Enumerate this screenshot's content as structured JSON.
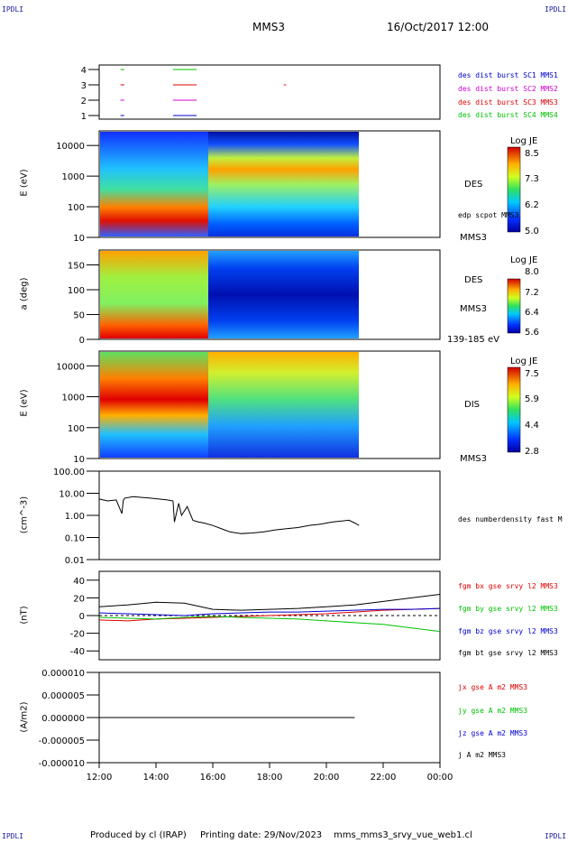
{
  "header": {
    "corner_left": "IPDLI",
    "corner_right": "IPDLI",
    "corner_bottom_left": "IPDLI",
    "corner_bottom_right": "IPDLI",
    "spacecraft": "MMS3",
    "datetime": "16/Oct/2017 12:00"
  },
  "footer": {
    "produced_by": "Produced by cl (IRAP)",
    "printing_date": "Printing date: 29/Nov/2023",
    "script_name": "mms_mms3_srvy_vue_web1.cl"
  },
  "colors": {
    "black": "#000000",
    "red": "#e00000",
    "green": "#00c000",
    "blue": "#0000d0",
    "magenta": "#d000d0"
  },
  "chart_data": [
    {
      "type": "scatter",
      "panel": "burst",
      "yticks": [
        "1",
        "2",
        "3",
        "4"
      ],
      "legend": [
        {
          "label": "des dist burst SC1 MMS1",
          "color": "#0000d0"
        },
        {
          "label": "des dist burst SC2 MMS2",
          "color": "#d000d0"
        },
        {
          "label": "des dist burst SC3 MMS3",
          "color": "#e00000"
        },
        {
          "label": "des dist burst SC4 MMS4",
          "color": "#00c000"
        }
      ],
      "series": [
        {
          "name": "des dist burst SC1 MMS1",
          "y": 1,
          "segments": [
            [
              12.75,
              12.85
            ],
            [
              14.6,
              15.4
            ]
          ]
        },
        {
          "name": "des dist burst SC2 MMS2",
          "y": 2,
          "segments": [
            [
              12.75,
              12.85
            ],
            [
              14.6,
              15.4
            ]
          ]
        },
        {
          "name": "des dist burst SC3 MMS3",
          "y": 3,
          "segments": [
            [
              12.75,
              12.85
            ],
            [
              14.6,
              15.4
            ],
            [
              18.5,
              18.55
            ]
          ]
        },
        {
          "name": "des dist burst SC4 MMS4",
          "y": 4,
          "segments": [
            [
              12.75,
              12.85
            ],
            [
              14.6,
              15.4
            ]
          ]
        }
      ]
    },
    {
      "type": "heatmap",
      "panel": "des-energy",
      "ylabel": "E (eV)",
      "yscale": "log",
      "ylim": [
        10,
        30000
      ],
      "yticks": [
        "10",
        "100",
        "1000",
        "10000"
      ],
      "right_labels": [
        "DES",
        "edp scpot MMS3",
        "MMS3"
      ],
      "colorbar": {
        "title": "Log JE",
        "ticks": [
          "8.5",
          "7.3",
          "6.2",
          "5.0"
        ]
      },
      "data_end_hour": 21.15
    },
    {
      "type": "heatmap",
      "panel": "des-pitch",
      "ylabel": "a (deg)",
      "ylim": [
        0,
        180
      ],
      "yticks": [
        "0",
        "50",
        "100",
        "150"
      ],
      "right_labels": [
        "DES",
        "MMS3",
        "139-185 eV"
      ],
      "colorbar": {
        "title": "Log JE",
        "ticks": [
          "8.0",
          "7.2",
          "6.4",
          "5.6"
        ]
      },
      "data_end_hour": 21.15
    },
    {
      "type": "heatmap",
      "panel": "dis-energy",
      "ylabel": "E (eV)",
      "yscale": "log",
      "ylim": [
        10,
        30000
      ],
      "yticks": [
        "10",
        "100",
        "1000",
        "10000"
      ],
      "right_labels": [
        "DIS",
        "MMS3"
      ],
      "colorbar": {
        "title": "Log JE",
        "ticks": [
          "7.5",
          "5.9",
          "4.4",
          "2.8"
        ]
      },
      "data_end_hour": 21.15
    },
    {
      "type": "line",
      "panel": "density",
      "ylabel": "(cm^-3)",
      "yscale": "log",
      "ylim": [
        0.01,
        100
      ],
      "yticks": [
        "0.01",
        "0.10",
        "1.00",
        "10.00",
        "100.00"
      ],
      "series": [
        {
          "name": "des numberdensity fast M",
          "color": "#000000",
          "x": [
            12.0,
            12.3,
            12.6,
            12.8,
            12.85,
            12.9,
            13.2,
            13.5,
            13.8,
            14.1,
            14.4,
            14.6,
            14.65,
            14.8,
            14.9,
            15.1,
            15.3,
            15.5,
            15.7,
            16.0,
            16.3,
            16.6,
            17.0,
            17.4,
            17.8,
            18.2,
            18.6,
            19.0,
            19.4,
            19.8,
            20.2,
            20.5,
            20.8,
            21.0,
            21.15
          ],
          "y": [
            5.5,
            4.5,
            5.0,
            1.2,
            4.8,
            6.0,
            7.0,
            6.5,
            6.0,
            5.5,
            5.0,
            4.5,
            0.5,
            3.5,
            1.0,
            2.5,
            0.6,
            0.5,
            0.45,
            0.35,
            0.25,
            0.18,
            0.15,
            0.16,
            0.18,
            0.22,
            0.25,
            0.28,
            0.35,
            0.4,
            0.5,
            0.55,
            0.6,
            0.45,
            0.35
          ]
        }
      ]
    },
    {
      "type": "line",
      "panel": "magnetic-field",
      "ylabel": "(nT)",
      "ylim": [
        -50,
        50
      ],
      "yticks": [
        "-40",
        "-20",
        "0",
        "20",
        "40"
      ],
      "series": [
        {
          "name": "fgm bx gse srvy l2 MMS3",
          "color": "#e00000",
          "x": [
            12.0,
            13.0,
            14.0,
            15.0,
            16.0,
            17.0,
            18.0,
            19.0,
            20.0,
            21.0,
            22.0,
            23.0,
            24.0
          ],
          "y": [
            -5,
            -6,
            -4,
            -3,
            -2,
            -1,
            0,
            1,
            2,
            4,
            6,
            7,
            8
          ]
        },
        {
          "name": "fgm by gse srvy l2 MMS3",
          "color": "#00c000",
          "x": [
            12.0,
            13.0,
            14.0,
            15.0,
            16.0,
            17.0,
            18.0,
            19.0,
            20.0,
            21.0,
            22.0,
            23.0,
            24.0
          ],
          "y": [
            -2,
            -3,
            -4,
            -2,
            -1,
            -2,
            -3,
            -4,
            -6,
            -8,
            -10,
            -14,
            -18
          ]
        },
        {
          "name": "fgm bz gse srvy l2 MMS3",
          "color": "#0000d0",
          "x": [
            12.0,
            13.0,
            14.0,
            15.0,
            16.0,
            17.0,
            18.0,
            19.0,
            20.0,
            21.0,
            22.0,
            23.0,
            24.0
          ],
          "y": [
            3,
            2,
            1,
            0,
            2,
            3,
            4,
            4,
            5,
            6,
            7,
            7,
            8
          ]
        },
        {
          "name": "fgm bt gse srvy l2 MMS3",
          "color": "#000000",
          "x": [
            12.0,
            13.0,
            14.0,
            15.0,
            16.0,
            17.0,
            18.0,
            19.0,
            20.0,
            21.0,
            22.0,
            23.0,
            24.0
          ],
          "y": [
            10,
            12,
            15,
            14,
            7,
            6,
            7,
            8,
            10,
            12,
            16,
            20,
            24
          ]
        }
      ]
    },
    {
      "type": "line",
      "panel": "current",
      "ylabel": "(A/m2)",
      "ylim": [
        -1e-05,
        1e-05
      ],
      "yticks": [
        "-0.000010",
        "-0.000005",
        "0.000000",
        "0.000005",
        "0.000010"
      ],
      "series": [
        {
          "name": "jx gse A m2 MMS3",
          "color": "#e00000"
        },
        {
          "name": "jy gse A m2 MMS3",
          "color": "#00c000"
        },
        {
          "name": "jz gse A m2 MMS3",
          "color": "#0000d0"
        },
        {
          "name": "j A m2 MMS3",
          "color": "#000000",
          "x": [
            12.0,
            21.0
          ],
          "y": [
            0.0,
            0.0
          ]
        }
      ]
    }
  ],
  "xaxis": {
    "ticks": [
      "12:00",
      "14:00",
      "16:00",
      "18:00",
      "20:00",
      "22:00",
      "00:00"
    ]
  }
}
